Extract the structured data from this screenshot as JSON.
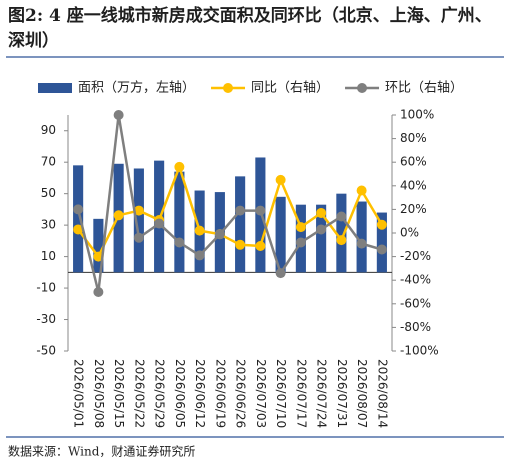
{
  "chart_data": {
    "type": "bar-line",
    "title": "图2: 4 座一线城市新房成交面积及同环比（北京、上海、广州、深圳）",
    "source": "数据来源：Wind，财通证券研究所",
    "categories": [
      "2026/05/01",
      "2026/05/08",
      "2026/05/15",
      "2026/05/22",
      "2026/05/29",
      "2026/06/05",
      "2026/06/12",
      "2026/06/19",
      "2026/06/26",
      "2026/07/03",
      "2026/07/10",
      "2026/07/17",
      "2026/07/24",
      "2026/07/31",
      "2026/08/07",
      "2026/08/14"
    ],
    "series": [
      {
        "name": "面积（万方，左轴）",
        "type": "bar",
        "color": "#2e5597",
        "values": [
          68,
          34,
          69,
          66,
          71,
          64,
          52,
          51,
          61,
          73,
          48,
          43,
          43,
          50,
          45,
          38
        ]
      },
      {
        "name": "同比（右轴）",
        "type": "line",
        "axis": "y2",
        "color": "#ffc000",
        "values": [
          3,
          -20,
          15,
          19,
          11,
          56,
          2,
          -1,
          -10,
          -11,
          45,
          5,
          17,
          -6,
          36,
          7
        ]
      },
      {
        "name": "环比（右轴）",
        "type": "line",
        "axis": "y2",
        "color": "#7f7f7f",
        "values": [
          20,
          -50,
          100,
          -4,
          8,
          -8,
          -19,
          -1,
          19,
          19,
          -34,
          -8,
          3,
          14,
          -9,
          -14
        ]
      }
    ],
    "ylim": [
      -50,
      100
    ],
    "yticks": [
      -50,
      -30,
      -10,
      10,
      30,
      50,
      70,
      90
    ],
    "y2lim": [
      -100,
      100
    ],
    "y2ticks": [
      {
        "value": -100,
        "label": "-100%"
      },
      {
        "value": -80,
        "label": "-80%"
      },
      {
        "value": -60,
        "label": "-60%"
      },
      {
        "value": -40,
        "label": "-40%"
      },
      {
        "value": -20,
        "label": "-20%"
      },
      {
        "value": 0,
        "label": "0%"
      },
      {
        "value": 20,
        "label": "20%"
      },
      {
        "value": 40,
        "label": "40%"
      },
      {
        "value": 60,
        "label": "60%"
      },
      {
        "value": 80,
        "label": "80%"
      },
      {
        "value": 100,
        "label": "100%"
      }
    ]
  }
}
